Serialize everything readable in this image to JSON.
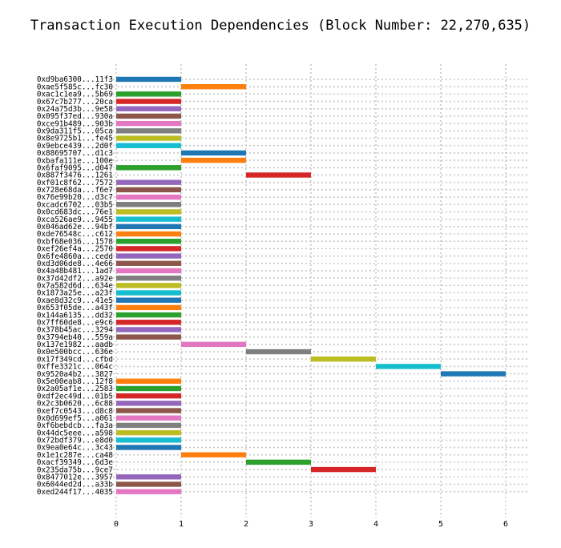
{
  "chart_data": {
    "type": "bar",
    "orientation": "horizontal-gantt",
    "title": "Transaction Execution Dependencies (Block Number: 22,270,635)",
    "xlabel": "",
    "ylabel": "",
    "xlim": [
      0,
      6.3
    ],
    "xticks": [
      0,
      1,
      2,
      3,
      4,
      5,
      6
    ],
    "grid": true,
    "palette": [
      "#1f77b4",
      "#ff7f0e",
      "#2ca02c",
      "#d62728",
      "#9467bd",
      "#8c564b",
      "#e377c2",
      "#7f7f7f",
      "#bcbd22",
      "#17becf"
    ],
    "transactions": [
      {
        "label": "0xd9ba6300...11f3",
        "start": 0,
        "end": 1
      },
      {
        "label": "0xae5f585c...fc30",
        "start": 1,
        "end": 2
      },
      {
        "label": "0xac1c1ea9...5b69",
        "start": 0,
        "end": 1
      },
      {
        "label": "0x67c7b277...20ca",
        "start": 0,
        "end": 1
      },
      {
        "label": "0x24a75d3b...9e58",
        "start": 0,
        "end": 1
      },
      {
        "label": "0x095f37ed...930a",
        "start": 0,
        "end": 1
      },
      {
        "label": "0xce91b489...903b",
        "start": 0,
        "end": 1
      },
      {
        "label": "0x9da311f5...05ca",
        "start": 0,
        "end": 1
      },
      {
        "label": "0x8e9725b1...fe45",
        "start": 0,
        "end": 1
      },
      {
        "label": "0x9ebce439...2d0f",
        "start": 0,
        "end": 1
      },
      {
        "label": "0x88695707...d1c3",
        "start": 1,
        "end": 2
      },
      {
        "label": "0xbafa111e...100e",
        "start": 1,
        "end": 2
      },
      {
        "label": "0x6faf9095...d047",
        "start": 0,
        "end": 1
      },
      {
        "label": "0x887f3476...1261",
        "start": 2,
        "end": 3
      },
      {
        "label": "0xf01c8f62...7572",
        "start": 0,
        "end": 1
      },
      {
        "label": "0x728e68da...f6e7",
        "start": 0,
        "end": 1
      },
      {
        "label": "0x76e99b20...d3c7",
        "start": 0,
        "end": 1
      },
      {
        "label": "0xcadc6702...03b5",
        "start": 0,
        "end": 1
      },
      {
        "label": "0x0cd683dc...76e1",
        "start": 0,
        "end": 1
      },
      {
        "label": "0xca526ae9...9455",
        "start": 0,
        "end": 1
      },
      {
        "label": "0x046ad62e...94bf",
        "start": 0,
        "end": 1
      },
      {
        "label": "0xde76548c...c612",
        "start": 0,
        "end": 1
      },
      {
        "label": "0xbf68e036...1578",
        "start": 0,
        "end": 1
      },
      {
        "label": "0xef26ef4a...2570",
        "start": 0,
        "end": 1
      },
      {
        "label": "0x6fe4860a...cedd",
        "start": 0,
        "end": 1
      },
      {
        "label": "0xd3d06de8...4e66",
        "start": 0,
        "end": 1
      },
      {
        "label": "0x4a48b481...1ad7",
        "start": 0,
        "end": 1
      },
      {
        "label": "0x37d42df2...a92e",
        "start": 0,
        "end": 1
      },
      {
        "label": "0x7a582d6d...634e",
        "start": 0,
        "end": 1
      },
      {
        "label": "0x1873a25e...a23f",
        "start": 0,
        "end": 1
      },
      {
        "label": "0xae8d32c9...41e5",
        "start": 0,
        "end": 1
      },
      {
        "label": "0x653f05de...a43f",
        "start": 0,
        "end": 1
      },
      {
        "label": "0x144a6135...dd32",
        "start": 0,
        "end": 1
      },
      {
        "label": "0x7ff60de8...e9c6",
        "start": 0,
        "end": 1
      },
      {
        "label": "0x378b45ac...3294",
        "start": 0,
        "end": 1
      },
      {
        "label": "0x3794eb40...559a",
        "start": 0,
        "end": 1
      },
      {
        "label": "0x137e1982...aadb",
        "start": 1,
        "end": 2
      },
      {
        "label": "0x0e500bcc...636e",
        "start": 2,
        "end": 3
      },
      {
        "label": "0x17f349cd...cfbd",
        "start": 3,
        "end": 4
      },
      {
        "label": "0xffe3321c...064c",
        "start": 4,
        "end": 5
      },
      {
        "label": "0x9520a4b2...3827",
        "start": 5,
        "end": 6
      },
      {
        "label": "0x5e00eab8...12f8",
        "start": 0,
        "end": 1
      },
      {
        "label": "0x2a05af1e...2583",
        "start": 0,
        "end": 1
      },
      {
        "label": "0xdf2ec49d...01b5",
        "start": 0,
        "end": 1
      },
      {
        "label": "0x2c3b0620...6c88",
        "start": 0,
        "end": 1
      },
      {
        "label": "0xef7c0543...d8c8",
        "start": 0,
        "end": 1
      },
      {
        "label": "0x0d699ef5...a061",
        "start": 0,
        "end": 1
      },
      {
        "label": "0xf6bebdcb...fa3a",
        "start": 0,
        "end": 1
      },
      {
        "label": "0x44dc5eee...a598",
        "start": 0,
        "end": 1
      },
      {
        "label": "0x72bdf379...e8d0",
        "start": 0,
        "end": 1
      },
      {
        "label": "0x9ea0e64c...3c43",
        "start": 0,
        "end": 1
      },
      {
        "label": "0x1e1c287e...ca48",
        "start": 1,
        "end": 2
      },
      {
        "label": "0xacf39349...6d3e",
        "start": 2,
        "end": 3
      },
      {
        "label": "0x235da75b...9ce7",
        "start": 3,
        "end": 4
      },
      {
        "label": "0x8477012e...3957",
        "start": 0,
        "end": 1
      },
      {
        "label": "0x6044ed2d...a33b",
        "start": 0,
        "end": 1
      },
      {
        "label": "0xed244f17...4035",
        "start": 0,
        "end": 1
      }
    ]
  }
}
